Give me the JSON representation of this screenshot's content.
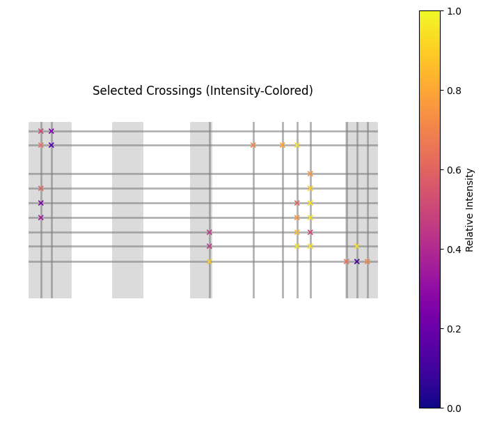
{
  "chart_data": {
    "type": "scatter",
    "title": "Selected Crossings (Intensity-Colored)",
    "marker": "x",
    "x": [
      18,
      33,
      18,
      33,
      18,
      18,
      18,
      260,
      260,
      260,
      323,
      365,
      386,
      405,
      405,
      386,
      405,
      386,
      405,
      386,
      405,
      386,
      405,
      472,
      457,
      472,
      487
    ],
    "y": [
      13,
      13,
      33,
      33,
      95,
      116,
      137,
      158,
      178,
      200,
      33,
      33,
      33,
      74,
      95,
      116,
      116,
      137,
      137,
      158,
      158,
      178,
      178,
      178,
      200,
      200,
      200
    ],
    "intensity": [
      0.5,
      0.25,
      0.65,
      0.15,
      0.6,
      0.25,
      0.35,
      0.45,
      0.45,
      0.9,
      0.7,
      0.8,
      0.95,
      0.75,
      0.9,
      0.6,
      0.95,
      0.75,
      0.95,
      0.85,
      0.5,
      0.95,
      0.95,
      0.95,
      0.65,
      0.1,
      0.7
    ],
    "xlim": [
      0,
      502
    ],
    "ylim": [
      253,
      0
    ],
    "tick_labels": false,
    "colorbar": {
      "label": "Relative Intensity",
      "lim": [
        0,
        1
      ],
      "ticks": [
        {
          "value": 0,
          "label": "0.0"
        },
        {
          "value": 0.2,
          "label": "0.2"
        },
        {
          "value": 0.4,
          "label": "0.4"
        },
        {
          "value": 0.6,
          "label": "0.6"
        },
        {
          "value": 0.8,
          "label": "0.8"
        },
        {
          "value": 1,
          "label": "1.0"
        }
      ]
    }
  }
}
